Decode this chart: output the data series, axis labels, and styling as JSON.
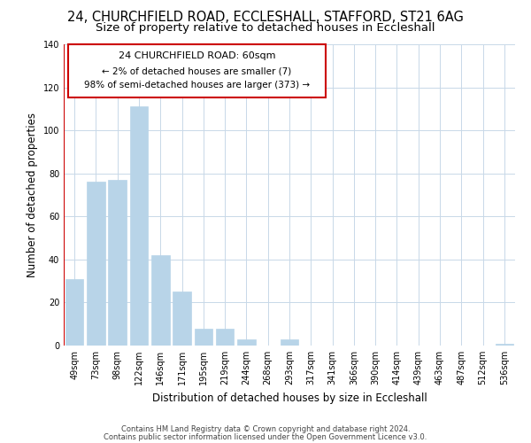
{
  "title": "24, CHURCHFIELD ROAD, ECCLESHALL, STAFFORD, ST21 6AG",
  "subtitle": "Size of property relative to detached houses in Eccleshall",
  "xlabel": "Distribution of detached houses by size in Eccleshall",
  "ylabel": "Number of detached properties",
  "bar_labels": [
    "49sqm",
    "73sqm",
    "98sqm",
    "122sqm",
    "146sqm",
    "171sqm",
    "195sqm",
    "219sqm",
    "244sqm",
    "268sqm",
    "293sqm",
    "317sqm",
    "341sqm",
    "366sqm",
    "390sqm",
    "414sqm",
    "439sqm",
    "463sqm",
    "487sqm",
    "512sqm",
    "536sqm"
  ],
  "bar_heights": [
    31,
    76,
    77,
    111,
    42,
    25,
    8,
    8,
    3,
    0,
    3,
    0,
    0,
    0,
    0,
    0,
    0,
    0,
    0,
    0,
    1
  ],
  "bar_color": "#b8d4e8",
  "ylim": [
    0,
    140
  ],
  "yticks": [
    0,
    20,
    40,
    60,
    80,
    100,
    120,
    140
  ],
  "annotation_title": "24 CHURCHFIELD ROAD: 60sqm",
  "annotation_line1": "← 2% of detached houses are smaller (7)",
  "annotation_line2": "98% of semi-detached houses are larger (373) →",
  "annotation_box_color": "#ffffff",
  "annotation_border_color": "#cc0000",
  "red_line_color": "#cc0000",
  "footer_line1": "Contains HM Land Registry data © Crown copyright and database right 2024.",
  "footer_line2": "Contains public sector information licensed under the Open Government Licence v3.0.",
  "bg_color": "#ffffff",
  "grid_color": "#c8d8e8",
  "title_fontsize": 10.5,
  "subtitle_fontsize": 9.5,
  "tick_fontsize": 7,
  "ylabel_fontsize": 8.5,
  "xlabel_fontsize": 8.5,
  "footer_fontsize": 6
}
